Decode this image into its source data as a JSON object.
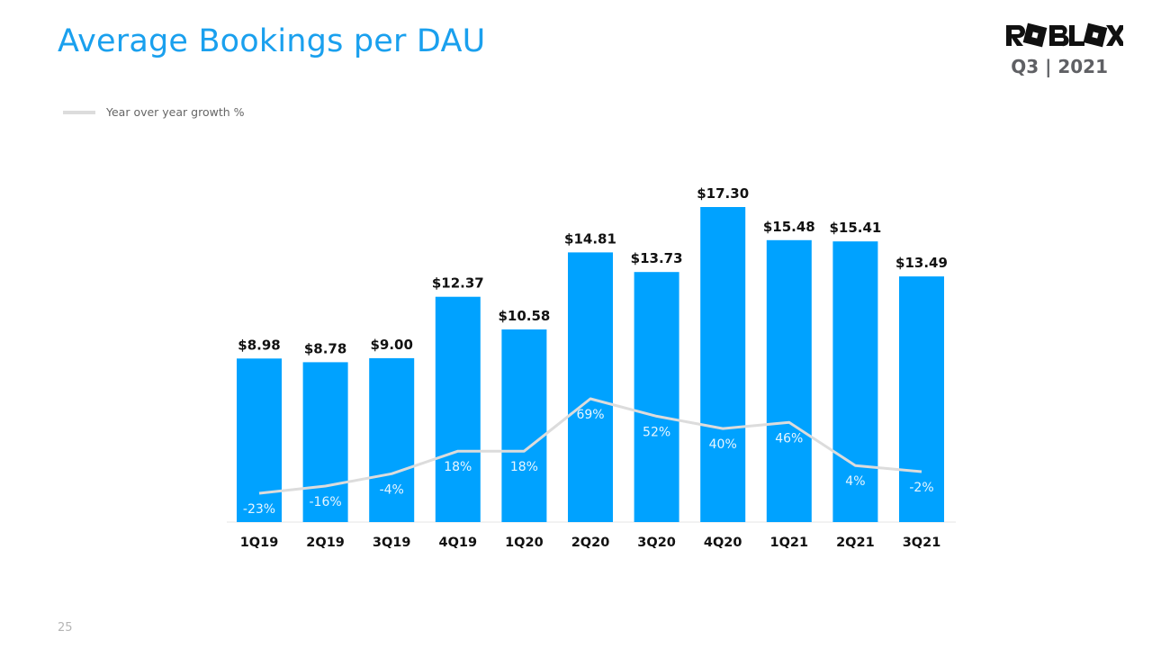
{
  "slide": {
    "title": "Average Bookings per DAU",
    "brand": "ROBLOX",
    "period": "Q3 | 2021",
    "page_number": "25",
    "legend_label": "Year over year growth %"
  },
  "colors": {
    "title": "#1aa0ee",
    "bar": "#00a2ff",
    "growth_line": "#dcdcdc",
    "value_label": "#111111",
    "growth_label": "#e8f6ff"
  },
  "chart_data": {
    "type": "bar",
    "categories": [
      "1Q19",
      "2Q19",
      "3Q19",
      "4Q19",
      "1Q20",
      "2Q20",
      "3Q20",
      "4Q20",
      "1Q21",
      "2Q21",
      "3Q21"
    ],
    "values": [
      8.98,
      8.78,
      9.0,
      12.37,
      10.58,
      14.81,
      13.73,
      17.3,
      15.48,
      15.41,
      13.49
    ],
    "value_labels": [
      "$8.98",
      "$8.78",
      "$9.00",
      "$12.37",
      "$10.58",
      "$14.81",
      "$13.73",
      "$17.30",
      "$15.48",
      "$15.41",
      "$13.49"
    ],
    "growth_series": {
      "name": "Year over year growth %",
      "type": "line",
      "values": [
        -23,
        -16,
        -4,
        18,
        18,
        69,
        52,
        40,
        46,
        4,
        -2
      ],
      "labels": [
        "-23%",
        "-16%",
        "-4%",
        "18%",
        "18%",
        "69%",
        "52%",
        "40%",
        "46%",
        "4%",
        "-2%"
      ]
    },
    "ylim": [
      0,
      17.3
    ],
    "grid": false,
    "legend_position": "top-left"
  }
}
